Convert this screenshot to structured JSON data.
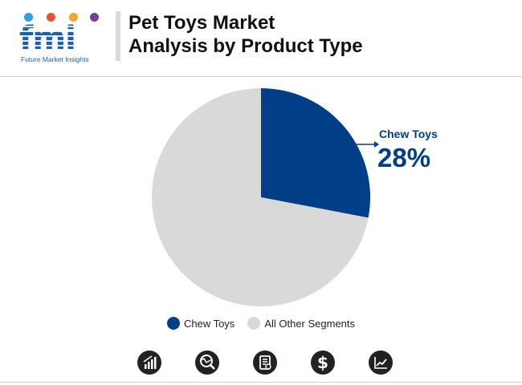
{
  "brand": {
    "logo_text": "fmi",
    "name": "Future Market Insights",
    "dot_colors": [
      "#2f9fd8",
      "#e0543a",
      "#f0a52c",
      "#7d3c98"
    ]
  },
  "header": {
    "title_line1": "Pet Toys Market",
    "title_line2": "Analysis by Product Type"
  },
  "chart_data": {
    "type": "pie",
    "title": "Pet Toys Market Analysis by Product Type",
    "categories": [
      "Chew Toys",
      "All Other Segments"
    ],
    "values": [
      28,
      72
    ],
    "colors": [
      "#003f87",
      "#d9d9d9"
    ],
    "callout": {
      "label": "Chew Toys",
      "value_text": "28%"
    },
    "legend_position": "bottom"
  },
  "footer_icons": [
    "bar-chart-icon",
    "magnifier-trend-icon",
    "report-icon",
    "dollar-icon",
    "line-chart-icon"
  ],
  "colors": {
    "accent": "#003f87",
    "other": "#d9d9d9",
    "icon_bg": "#222222"
  }
}
